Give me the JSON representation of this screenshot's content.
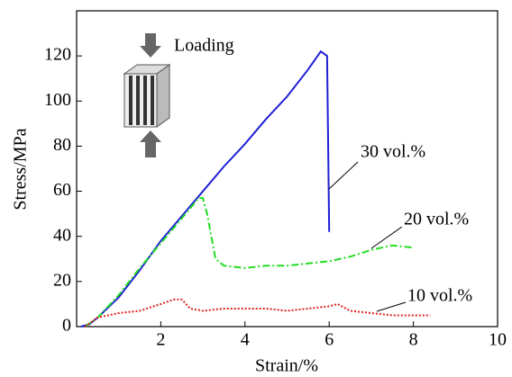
{
  "chart_data": {
    "type": "line",
    "x_label": "Strain/%",
    "y_label": "Stress/MPa",
    "annotation": "Loading",
    "xlim": [
      0,
      10
    ],
    "ylim": [
      0,
      140
    ],
    "xticks": [
      2,
      4,
      6,
      8,
      10
    ],
    "yticks": [
      0,
      20,
      40,
      60,
      80,
      100,
      120
    ],
    "series": [
      {
        "name": "30 vol.%",
        "color": "#1f1fd6",
        "style": "solid",
        "x": [
          0.1,
          0.3,
          0.5,
          1,
          1.5,
          2,
          2.5,
          3,
          3.5,
          4,
          4.5,
          5,
          5.5,
          5.8,
          5.95,
          6.0
        ],
        "values": [
          0,
          1,
          4,
          13,
          25,
          38,
          49,
          60,
          71,
          81,
          92,
          102,
          114,
          122,
          120,
          42
        ]
      },
      {
        "name": "20 vol.%",
        "color": "#22dd22",
        "style": "dashdot",
        "x": [
          0.2,
          0.5,
          1,
          1.5,
          2,
          2.5,
          2.9,
          3.0,
          3.1,
          3.3,
          3.5,
          4,
          4.5,
          5,
          5.5,
          6,
          6.5,
          7,
          7.5,
          8
        ],
        "values": [
          0,
          4,
          14,
          26,
          37,
          48,
          57,
          57,
          50,
          30,
          27,
          26,
          27,
          27,
          28,
          29,
          31,
          34,
          36,
          35
        ]
      },
      {
        "name": "10 vol.%",
        "color": "#e02020",
        "style": "dotted",
        "x": [
          0.2,
          0.5,
          1,
          1.5,
          2,
          2.3,
          2.5,
          2.7,
          3,
          3.5,
          4,
          4.5,
          5,
          5.5,
          6,
          6.2,
          6.5,
          7,
          7.5,
          8,
          8.4
        ],
        "values": [
          0,
          4,
          6,
          7,
          10,
          12,
          12,
          8,
          7,
          8,
          8,
          8,
          7,
          8,
          9,
          10,
          7,
          6,
          5,
          5,
          5
        ]
      }
    ]
  }
}
